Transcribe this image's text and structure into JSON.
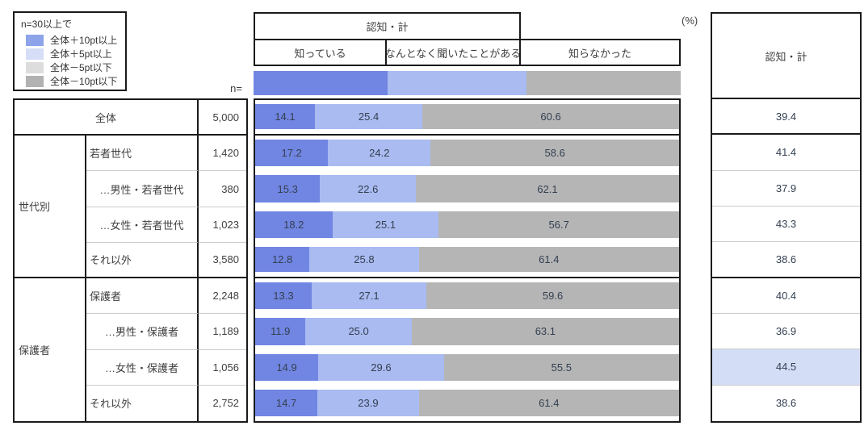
{
  "legend": {
    "title": "n=30以上で",
    "items": [
      {
        "label": "全体＋10pt以上",
        "color": "#8da4ea"
      },
      {
        "label": "全体＋5pt以上",
        "color": "#d6def7"
      },
      {
        "label": "全体－5pt以下",
        "color": "#dddddd"
      },
      {
        "label": "全体－10pt以下",
        "color": "#b2b2b2"
      }
    ]
  },
  "header": {
    "group_label": "認知・計",
    "columns": [
      "知っている",
      "なんとなく聞いたことがある",
      "知らなかった"
    ],
    "percent_label": "(%)",
    "n_label": "n=",
    "summary_label": "認知・計"
  },
  "colors": {
    "segments": [
      "#7186e2",
      "#a9bbf0",
      "#b5b5b5"
    ],
    "highlight": "#d4ddf6",
    "border": "#1a1a1a",
    "thin_line": "#cccccc",
    "number_text": "#333f50"
  },
  "groups": [
    {
      "label": "世代別",
      "start": 2,
      "span": 4
    },
    {
      "label": "保護者",
      "start": 6,
      "span": 4
    }
  ],
  "rows": [
    {
      "label": "全体",
      "align": "center",
      "n": "5,000",
      "values": [
        "14.1",
        "25.4",
        "60.6"
      ],
      "total": "39.4",
      "highlight": false
    },
    {
      "label": "若者世代",
      "align": "left",
      "n": "1,420",
      "values": [
        "17.2",
        "24.2",
        "58.6"
      ],
      "total": "41.4",
      "highlight": false
    },
    {
      "label": "…男性・若者世代",
      "align": "center",
      "n": "380",
      "values": [
        "15.3",
        "22.6",
        "62.1"
      ],
      "total": "37.9",
      "highlight": false
    },
    {
      "label": "…女性・若者世代",
      "align": "center",
      "n": "1,023",
      "values": [
        "18.2",
        "25.1",
        "56.7"
      ],
      "total": "43.3",
      "highlight": false
    },
    {
      "label": "それ以外",
      "align": "left",
      "n": "3,580",
      "values": [
        "12.8",
        "25.8",
        "61.4"
      ],
      "total": "38.6",
      "highlight": false
    },
    {
      "label": "保護者",
      "align": "left",
      "n": "2,248",
      "values": [
        "13.3",
        "27.1",
        "59.6"
      ],
      "total": "40.4",
      "highlight": false
    },
    {
      "label": "…男性・保護者",
      "align": "center",
      "n": "1,189",
      "values": [
        "11.9",
        "25.0",
        "63.1"
      ],
      "total": "36.9",
      "highlight": false
    },
    {
      "label": "…女性・保護者",
      "align": "center",
      "n": "1,056",
      "values": [
        "14.9",
        "29.6",
        "55.5"
      ],
      "total": "44.5",
      "highlight": true
    },
    {
      "label": "それ以外",
      "align": "left",
      "n": "2,752",
      "values": [
        "14.7",
        "23.9",
        "61.4"
      ],
      "total": "38.6",
      "highlight": false
    }
  ],
  "chart_data": {
    "type": "bar",
    "orientation": "horizontal-stacked",
    "title": "認知・計",
    "unit": "%",
    "xlim": [
      0,
      100
    ],
    "legend_position": "top",
    "categories": [
      "全体",
      "若者世代",
      "…男性・若者世代",
      "…女性・若者世代",
      "それ以外（世代別）",
      "保護者",
      "…男性・保護者",
      "…女性・保護者",
      "それ以外（保護者）"
    ],
    "n": [
      5000,
      1420,
      380,
      1023,
      3580,
      2248,
      1189,
      1056,
      2752
    ],
    "series": [
      {
        "name": "知っている",
        "color": "#7186e2",
        "values": [
          14.1,
          17.2,
          15.3,
          18.2,
          12.8,
          13.3,
          11.9,
          14.9,
          14.7
        ]
      },
      {
        "name": "なんとなく聞いたことがある",
        "color": "#a9bbf0",
        "values": [
          25.4,
          24.2,
          22.6,
          25.1,
          25.8,
          27.1,
          25.0,
          29.6,
          23.9
        ]
      },
      {
        "name": "知らなかった",
        "color": "#b5b5b5",
        "values": [
          60.6,
          58.6,
          62.1,
          56.7,
          61.4,
          59.6,
          63.1,
          55.5,
          61.4
        ]
      }
    ],
    "totals": {
      "name": "認知・計",
      "values": [
        39.4,
        41.4,
        37.9,
        43.3,
        38.6,
        40.4,
        36.9,
        44.5,
        38.6
      ],
      "highlighted_index": 7
    },
    "threshold_legend": {
      "condition": "n=30以上で",
      "classes": [
        "全体＋10pt以上",
        "全体＋5pt以上",
        "全体－5pt以下",
        "全体－10pt以下"
      ]
    }
  }
}
